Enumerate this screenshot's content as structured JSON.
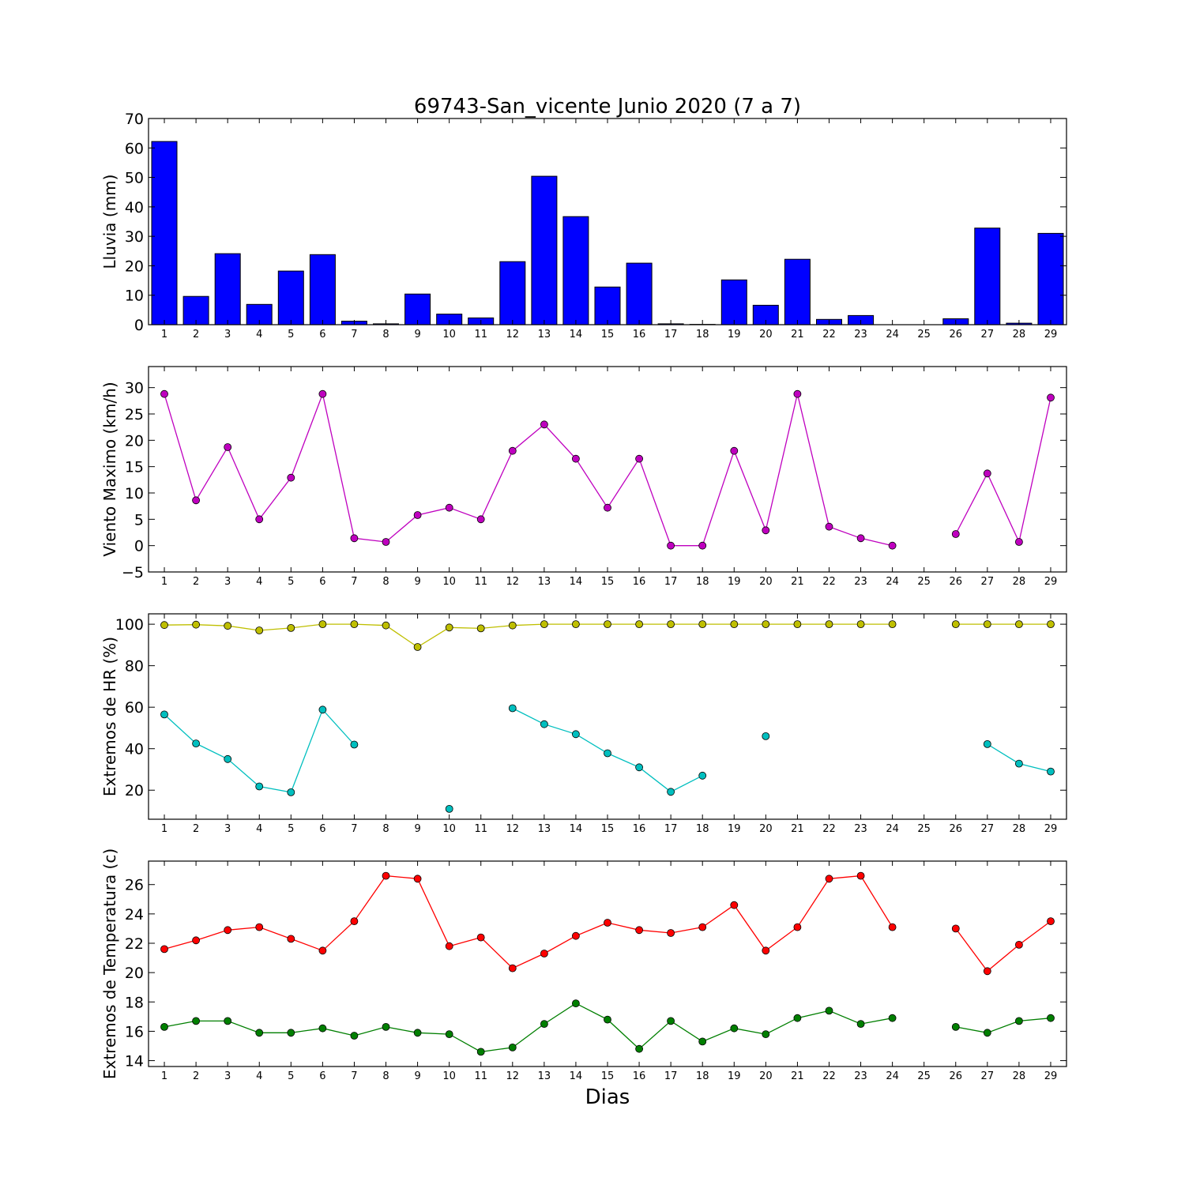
{
  "title": "69743-San_vicente Junio 2020  (7 a 7)",
  "xlabel": "Dias",
  "colors": {
    "rain": "#0000ff",
    "wind": "#bf00bf",
    "hr_max": "#bfbf00",
    "hr_min": "#00bfbf",
    "t_max": "#ff0000",
    "t_min": "#007f00"
  },
  "chart_data": [
    {
      "type": "bar",
      "ylabel": "Lluvia (mm)",
      "ylim": [
        0,
        70
      ],
      "yticks": [
        0,
        10,
        20,
        30,
        40,
        50,
        60,
        70
      ],
      "x": [
        1,
        2,
        3,
        4,
        5,
        6,
        7,
        8,
        9,
        10,
        11,
        12,
        13,
        14,
        15,
        16,
        17,
        18,
        19,
        20,
        21,
        22,
        23,
        24,
        25,
        26,
        27,
        28,
        29
      ],
      "xticklabels": [
        "1",
        "2",
        "3",
        "4",
        "5",
        "6",
        "7",
        "8",
        "9",
        "10",
        "11",
        "12",
        "13",
        "14",
        "15",
        "16",
        "17",
        "18",
        "19",
        "20",
        "21",
        "22",
        "23",
        "24",
        "25",
        "26",
        "27",
        "28",
        "29"
      ],
      "series": [
        {
          "color": "#0000ff",
          "values": [
            62.2,
            9.6,
            24.1,
            6.9,
            18.2,
            23.8,
            1.2,
            0.3,
            10.4,
            3.6,
            2.3,
            21.4,
            50.4,
            36.7,
            12.8,
            20.9,
            0.3,
            0.1,
            15.2,
            6.6,
            22.2,
            1.8,
            3.1,
            0,
            0,
            2.0,
            32.8,
            0.5,
            31.0
          ]
        }
      ]
    },
    {
      "type": "line",
      "ylabel": "Viento Maximo (km/h)",
      "ylim": [
        -5,
        34
      ],
      "yticks": [
        -5,
        0,
        5,
        10,
        15,
        20,
        25,
        30
      ],
      "x": [
        1,
        2,
        3,
        4,
        5,
        6,
        7,
        8,
        9,
        10,
        11,
        12,
        13,
        14,
        15,
        16,
        17,
        18,
        19,
        20,
        21,
        22,
        23,
        24,
        25,
        26,
        27,
        28,
        29
      ],
      "xticklabels": [
        "1",
        "2",
        "3",
        "4",
        "5",
        "6",
        "7",
        "8",
        "9",
        "10",
        "11",
        "12",
        "13",
        "14",
        "15",
        "16",
        "17",
        "18",
        "19",
        "20",
        "21",
        "22",
        "23",
        "24",
        "25",
        "26",
        "27",
        "28",
        "29"
      ],
      "series": [
        {
          "color": "#bf00bf",
          "values": [
            28.8,
            8.6,
            18.7,
            5.0,
            12.9,
            28.8,
            1.4,
            0.7,
            5.8,
            7.2,
            5.0,
            18.0,
            23.0,
            16.5,
            7.2,
            16.5,
            0,
            0,
            18.0,
            2.9,
            28.8,
            3.6,
            1.4,
            0,
            null,
            2.2,
            13.7,
            0.7,
            28.1
          ]
        }
      ]
    },
    {
      "type": "line",
      "ylabel": "Extremos de HR (%)",
      "ylim": [
        6,
        105
      ],
      "yticks": [
        20,
        40,
        60,
        80,
        100
      ],
      "x": [
        1,
        2,
        3,
        4,
        5,
        6,
        7,
        8,
        9,
        10,
        11,
        12,
        13,
        14,
        15,
        16,
        17,
        18,
        19,
        20,
        21,
        22,
        23,
        24,
        25,
        26,
        27,
        28,
        29
      ],
      "xticklabels": [
        "1",
        "2",
        "3",
        "4",
        "5",
        "6",
        "7",
        "8",
        "9",
        "10",
        "11",
        "12",
        "13",
        "14",
        "15",
        "16",
        "17",
        "18",
        "19",
        "20",
        "21",
        "22",
        "23",
        "24",
        "25",
        "26",
        "27",
        "28",
        "29"
      ],
      "series": [
        {
          "color": "#bfbf00",
          "values": [
            99.6,
            99.8,
            99.2,
            97.0,
            98.2,
            100,
            100,
            99.4,
            89.0,
            98.4,
            98.0,
            99.4,
            100,
            100,
            100,
            100,
            100,
            100,
            100,
            100,
            100,
            100,
            100,
            100,
            null,
            100,
            100,
            100,
            100
          ]
        },
        {
          "color": "#00bfbf",
          "values": [
            56.5,
            42.5,
            35.0,
            21.8,
            19.0,
            58.8,
            42.0,
            null,
            null,
            11.0,
            null,
            59.5,
            51.8,
            47.0,
            37.8,
            31.0,
            19.2,
            27.0,
            null,
            46.0,
            null,
            null,
            null,
            null,
            null,
            null,
            42.2,
            32.8,
            29.0
          ]
        }
      ]
    },
    {
      "type": "line",
      "ylabel": "Extremos de Temperatura (c)",
      "ylim": [
        13.6,
        27.6
      ],
      "yticks": [
        14,
        16,
        18,
        20,
        22,
        24,
        26
      ],
      "x": [
        1,
        2,
        3,
        4,
        5,
        6,
        7,
        8,
        9,
        10,
        11,
        12,
        13,
        14,
        15,
        16,
        17,
        18,
        19,
        20,
        21,
        22,
        23,
        24,
        25,
        26,
        27,
        28,
        29
      ],
      "xticklabels": [
        "1",
        "2",
        "3",
        "4",
        "5",
        "6",
        "7",
        "8",
        "9",
        "10",
        "11",
        "12",
        "13",
        "14",
        "15",
        "16",
        "17",
        "18",
        "19",
        "20",
        "21",
        "22",
        "23",
        "24",
        "25",
        "26",
        "27",
        "28",
        "29"
      ],
      "series": [
        {
          "color": "#ff0000",
          "values": [
            21.6,
            22.2,
            22.9,
            23.1,
            22.3,
            21.5,
            23.5,
            26.6,
            26.4,
            21.8,
            22.4,
            20.3,
            21.3,
            22.5,
            23.4,
            22.9,
            22.7,
            23.1,
            24.6,
            21.5,
            23.1,
            26.4,
            26.6,
            23.1,
            null,
            23.0,
            20.1,
            21.9,
            23.5
          ]
        },
        {
          "color": "#007f00",
          "values": [
            16.3,
            16.7,
            16.7,
            15.9,
            15.9,
            16.2,
            15.7,
            16.3,
            15.9,
            15.8,
            14.6,
            14.9,
            16.5,
            17.9,
            16.8,
            14.8,
            16.7,
            15.3,
            16.2,
            15.8,
            16.9,
            17.4,
            16.5,
            16.9,
            null,
            16.3,
            15.9,
            16.7,
            16.9
          ]
        }
      ]
    }
  ]
}
